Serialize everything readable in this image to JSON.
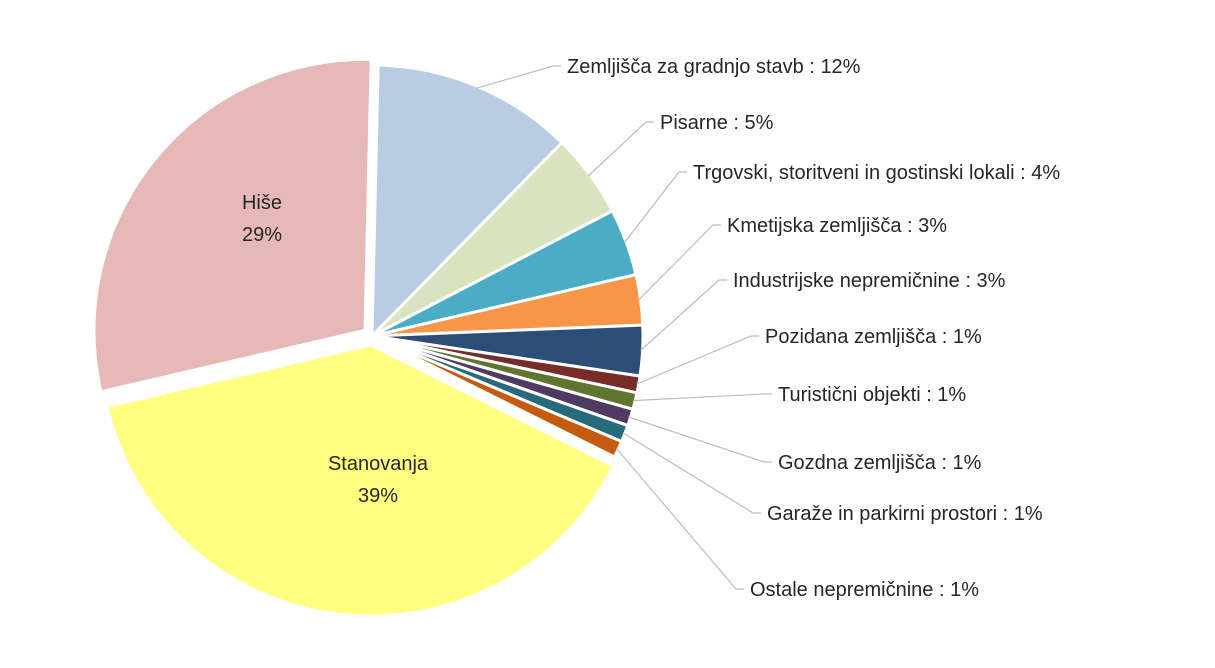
{
  "chart_data": {
    "type": "pie",
    "title": "",
    "legend": "none",
    "label_separator": " : ",
    "slices": [
      {
        "name": "Zemljišča za gradnjo stavb",
        "value": 12,
        "label": "12%",
        "color": "#b8cce4",
        "label_pos": "outside"
      },
      {
        "name": "Pisarne",
        "value": 5,
        "label": "5%",
        "color": "#d7e4bd",
        "label_pos": "outside"
      },
      {
        "name": "Trgovski, storitveni in gostinski lokali",
        "value": 4,
        "label": "4%",
        "color": "#4bacc6",
        "label_pos": "outside"
      },
      {
        "name": "Kmetijska zemljišča",
        "value": 3,
        "label": "3%",
        "color": "#f79646",
        "label_pos": "outside"
      },
      {
        "name": "Industrijske nepremičnine",
        "value": 3,
        "label": "3%",
        "color": "#2c4d75",
        "label_pos": "outside"
      },
      {
        "name": "Pozidana zemljišča",
        "value": 1,
        "label": "1%",
        "color": "#772c2a",
        "label_pos": "outside"
      },
      {
        "name": "Turistični objekti",
        "value": 1,
        "label": "1%",
        "color": "#5f7530",
        "label_pos": "outside"
      },
      {
        "name": "Gozdna zemljišča",
        "value": 1,
        "label": "1%",
        "color": "#4d3b62",
        "label_pos": "outside"
      },
      {
        "name": "Garaže in parkirni prostori",
        "value": 1,
        "label": "1%",
        "color": "#276a7c",
        "label_pos": "outside"
      },
      {
        "name": "Ostale nepremičnine",
        "value": 1,
        "label": "1%",
        "color": "#c55a11",
        "label_pos": "outside"
      },
      {
        "name": "Stanovanja",
        "value": 39,
        "label": "39%",
        "color": "#ffff80",
        "label_pos": "inside"
      },
      {
        "name": "Hiše",
        "value": 29,
        "label": "29%",
        "color": "#e6b9b8",
        "label_pos": "inside"
      }
    ]
  }
}
